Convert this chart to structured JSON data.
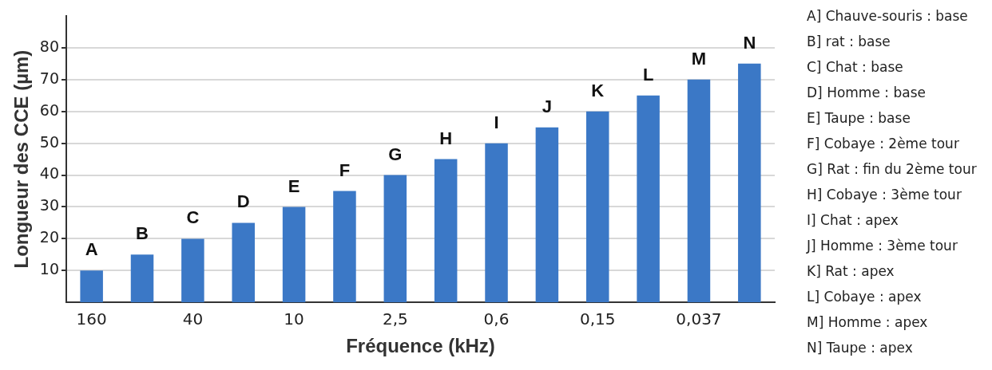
{
  "chart_data": {
    "type": "bar",
    "xlabel": "Fréquence (kHz)",
    "ylabel": "Longueur des CCE (µm)",
    "categories": [
      "160",
      null,
      "40",
      null,
      "10",
      null,
      "2,5",
      null,
      "0,6",
      null,
      "0,15",
      null,
      "0,037",
      null
    ],
    "values": [
      10,
      15,
      20,
      25,
      30,
      35,
      40,
      45,
      50,
      55,
      60,
      65,
      70,
      75
    ],
    "value_labels": [
      "A",
      "B",
      "C",
      "D",
      "E",
      "F",
      "G",
      "H",
      "I",
      "J",
      "K",
      "L",
      "M",
      "N"
    ],
    "color": "#3b78c6",
    "ylim": [
      0,
      90
    ],
    "yticks": [
      10,
      20,
      30,
      40,
      50,
      60,
      70,
      80
    ],
    "grid": "y",
    "legend": false,
    "annotations": [
      "A] Chauve-souris : base",
      "B] rat : base",
      "C] Chat : base",
      "D] Homme : base",
      "E] Taupe : base",
      "F] Cobaye : 2ème tour",
      "G] Rat : fin du 2ème tour",
      "H] Cobaye : 3ème tour",
      "I] Chat : apex",
      "J] Homme : 3ème tour",
      "K] Rat : apex",
      "L] Cobaye : apex",
      "M] Homme : apex",
      "N] Taupe : apex"
    ]
  }
}
